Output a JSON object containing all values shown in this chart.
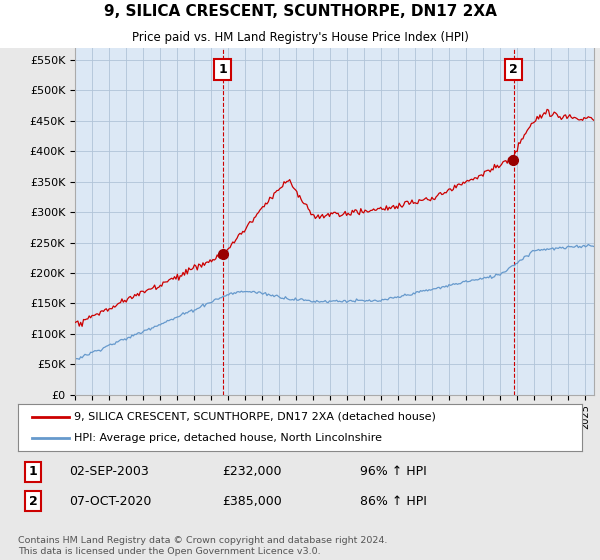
{
  "title": "9, SILICA CRESCENT, SCUNTHORPE, DN17 2XA",
  "subtitle": "Price paid vs. HM Land Registry's House Price Index (HPI)",
  "ylim": [
    0,
    575000
  ],
  "yticks": [
    0,
    50000,
    100000,
    150000,
    200000,
    250000,
    300000,
    350000,
    400000,
    450000,
    500000,
    550000
  ],
  "ytick_labels": [
    "£0",
    "£50K",
    "£100K",
    "£150K",
    "£200K",
    "£250K",
    "£300K",
    "£350K",
    "£400K",
    "£450K",
    "£500K",
    "£550K"
  ],
  "background_color": "#e8e8e8",
  "plot_background": "#dce8f5",
  "grid_color": "#b0c4d8",
  "line1_color": "#cc0000",
  "line2_color": "#6699cc",
  "marker_color": "#990000",
  "vline_color": "#cc0000",
  "annot_box_color": "#ffffff",
  "annot_border_color": "#cc0000",
  "sale1_date": "02-SEP-2003",
  "sale1_price": 232000,
  "sale1_pct": "96%",
  "sale1_year": 2003.67,
  "sale1_price_val": 232000,
  "sale2_date": "07-OCT-2020",
  "sale2_price": 385000,
  "sale2_pct": "86%",
  "sale2_year": 2020.77,
  "sale2_price_val": 385000,
  "legend_line1": "9, SILICA CRESCENT, SCUNTHORPE, DN17 2XA (detached house)",
  "legend_line2": "HPI: Average price, detached house, North Lincolnshire",
  "footnote": "Contains HM Land Registry data © Crown copyright and database right 2024.\nThis data is licensed under the Open Government Licence v3.0.",
  "xlim_start": 1995.0,
  "xlim_end": 2025.5
}
